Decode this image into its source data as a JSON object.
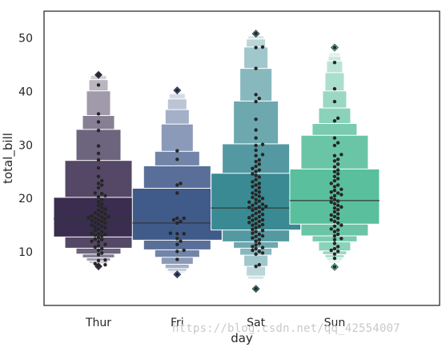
{
  "chart_data": {
    "type": "boxen",
    "xlabel": "day",
    "ylabel": "total_bill",
    "categories": [
      "Thur",
      "Fri",
      "Sat",
      "Sun"
    ],
    "ylim": [
      0,
      55
    ],
    "yticks": [
      10,
      20,
      30,
      40,
      50
    ],
    "grid": false,
    "colors": [
      "#3a2d4f",
      "#405a8a",
      "#3a8a93",
      "#5abf9d"
    ],
    "boxes": [
      {
        "category": "Thur",
        "median": 16.2,
        "levels": [
          [
            12.8,
            20.2
          ],
          [
            10.7,
            27.1
          ],
          [
            9.6,
            32.9
          ],
          [
            8.9,
            35.5
          ],
          [
            8.3,
            40.1
          ],
          [
            7.9,
            42.2
          ],
          [
            7.7,
            43.0
          ]
        ],
        "outliers": [
          43.1,
          7.3
        ],
        "points": [
          7.5,
          7.6,
          7.8,
          8.4,
          8.5,
          9.5,
          9.8,
          10.3,
          10.6,
          10.9,
          11.2,
          11.4,
          11.9,
          12.0,
          12.3,
          12.4,
          12.7,
          13.0,
          13.1,
          13.3,
          13.4,
          13.5,
          13.8,
          14.0,
          14.3,
          14.5,
          14.7,
          14.8,
          15.0,
          15.2,
          15.4,
          15.5,
          15.7,
          15.9,
          16.0,
          16.2,
          16.3,
          16.4,
          16.5,
          16.6,
          16.7,
          16.9,
          17.1,
          17.3,
          17.5,
          17.8,
          18.0,
          18.3,
          18.7,
          19.0,
          19.4,
          19.8,
          20.3,
          20.5,
          20.9,
          21.0,
          22.0,
          22.5,
          22.8,
          23.3,
          24.1,
          25.7,
          27.2,
          28.4,
          29.8,
          32.7,
          34.3,
          35.8,
          41.2,
          43.1
        ]
      },
      {
        "category": "Fri",
        "median": 15.4,
        "levels": [
          [
            12.2,
            21.9
          ],
          [
            10.4,
            26.1
          ],
          [
            9.0,
            28.8
          ],
          [
            7.7,
            33.9
          ],
          [
            6.9,
            36.6
          ],
          [
            6.4,
            38.6
          ],
          [
            6.1,
            39.6
          ]
        ],
        "outliers": [
          40.2,
          5.8
        ],
        "points": [
          5.8,
          8.6,
          10.1,
          10.3,
          11.4,
          12.0,
          12.5,
          13.4,
          13.4,
          13.5,
          15.4,
          15.7,
          16.0,
          16.3,
          16.3,
          21.0,
          22.5,
          22.8,
          27.3,
          28.9,
          40.2
        ]
      },
      {
        "category": "Sat",
        "median": 18.2,
        "levels": [
          [
            14.1,
            24.7
          ],
          [
            11.9,
            30.2
          ],
          [
            10.7,
            38.2
          ],
          [
            9.4,
            44.3
          ],
          [
            7.3,
            48.3
          ],
          [
            5.5,
            49.8
          ],
          [
            4.9,
            50.4
          ]
        ],
        "outliers": [
          50.8,
          3.1
        ],
        "points": [
          3.1,
          7.3,
          7.6,
          9.6,
          9.8,
          10.1,
          10.3,
          10.6,
          10.8,
          11.0,
          11.3,
          11.6,
          12.0,
          12.3,
          12.6,
          12.9,
          13.0,
          13.3,
          13.5,
          13.8,
          14.0,
          14.2,
          14.5,
          14.8,
          15.0,
          15.1,
          15.3,
          15.5,
          15.7,
          15.9,
          16.0,
          16.2,
          16.4,
          16.6,
          16.8,
          17.0,
          17.2,
          17.5,
          17.8,
          18.0,
          18.1,
          18.3,
          18.4,
          18.5,
          18.7,
          18.9,
          19.1,
          19.3,
          19.5,
          19.8,
          20.0,
          20.2,
          20.4,
          20.7,
          21.0,
          21.2,
          21.5,
          22.0,
          22.2,
          22.5,
          22.8,
          23.1,
          23.5,
          24.0,
          24.3,
          24.6,
          25.0,
          25.3,
          25.6,
          26.0,
          26.4,
          26.9,
          27.2,
          28.0,
          28.2,
          29.0,
          29.9,
          30.1,
          31.3,
          32.8,
          34.8,
          38.1,
          38.7,
          39.4,
          44.3,
          48.2,
          48.3,
          50.8
        ]
      },
      {
        "category": "Sun",
        "median": 19.6,
        "levels": [
          [
            15.2,
            25.5
          ],
          [
            13.0,
            31.8
          ],
          [
            11.9,
            34.0
          ],
          [
            10.2,
            36.9
          ],
          [
            9.5,
            40.1
          ],
          [
            8.9,
            43.5
          ],
          [
            8.5,
            45.7
          ],
          [
            8.2,
            46.6
          ],
          [
            7.9,
            47.2
          ]
        ],
        "outliers": [
          48.2,
          7.2
        ],
        "points": [
          7.2,
          8.8,
          9.6,
          10.1,
          10.3,
          10.6,
          11.0,
          11.6,
          12.3,
          12.5,
          13.0,
          13.3,
          13.8,
          14.1,
          14.3,
          14.8,
          15.0,
          15.4,
          15.7,
          16.0,
          16.3,
          16.6,
          16.9,
          17.1,
          17.5,
          17.9,
          18.2,
          18.4,
          18.7,
          19.0,
          19.3,
          19.5,
          19.8,
          20.1,
          20.5,
          20.7,
          21.0,
          21.2,
          21.5,
          21.7,
          22.2,
          22.5,
          22.8,
          23.3,
          23.7,
          24.1,
          24.6,
          25.0,
          25.3,
          25.9,
          26.4,
          27.0,
          27.3,
          28.0,
          28.2,
          29.9,
          30.4,
          31.3,
          34.5,
          35.0,
          38.1,
          40.5,
          45.4,
          48.2
        ]
      }
    ]
  },
  "watermark": "https://blog.csdn.net/qq_42554007"
}
